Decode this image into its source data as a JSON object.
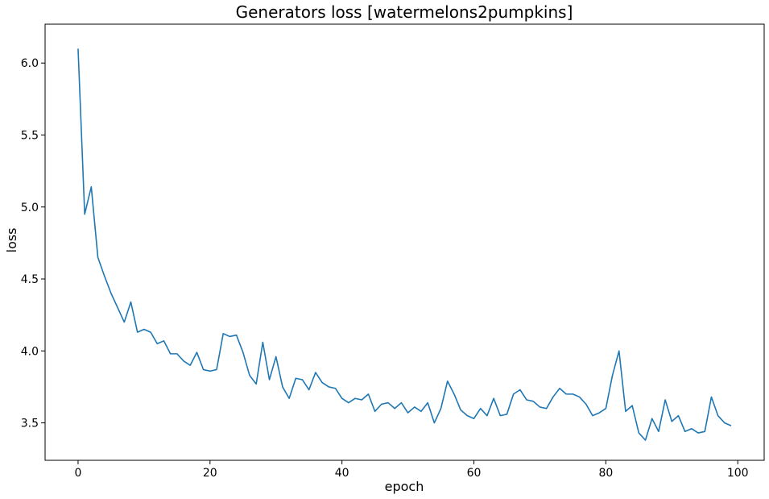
{
  "chart_data": {
    "type": "line",
    "title": "Generators loss [watermelons2pumpkins]",
    "xlabel": "epoch",
    "ylabel": "loss",
    "xlim": [
      -5,
      104
    ],
    "ylim": [
      3.24,
      6.27
    ],
    "xticks": [
      0,
      20,
      40,
      60,
      80,
      100
    ],
    "yticks": [
      3.5,
      4.0,
      4.5,
      5.0,
      5.5,
      6.0
    ],
    "xtick_labels": [
      "0",
      "20",
      "40",
      "60",
      "80",
      "100"
    ],
    "ytick_labels": [
      "3.5",
      "4.0",
      "4.5",
      "5.0",
      "5.5",
      "6.0"
    ],
    "grid": false,
    "line_color": "#1f77b4",
    "series": [
      {
        "x": [
          0,
          1,
          2,
          3,
          4,
          5,
          6,
          7,
          8,
          9,
          10,
          11,
          12,
          13,
          14,
          15,
          16,
          17,
          18,
          19,
          20,
          21,
          22,
          23,
          24,
          25,
          26,
          27,
          28,
          29,
          30,
          31,
          32,
          33,
          34,
          35,
          36,
          37,
          38,
          39,
          40,
          41,
          42,
          43,
          44,
          45,
          46,
          47,
          48,
          49,
          50,
          51,
          52,
          53,
          54,
          55,
          56,
          57,
          58,
          59,
          60,
          61,
          62,
          63,
          64,
          65,
          66,
          67,
          68,
          69,
          70,
          71,
          72,
          73,
          74,
          75,
          76,
          77,
          78,
          79,
          80,
          81,
          82,
          83,
          84,
          85,
          86,
          87,
          88,
          89,
          90,
          91,
          92,
          93,
          94,
          95,
          96,
          97,
          98,
          99
        ],
        "values": [
          6.1,
          4.95,
          5.14,
          4.65,
          4.52,
          4.4,
          4.3,
          4.2,
          4.34,
          4.13,
          4.15,
          4.13,
          4.05,
          4.07,
          3.98,
          3.98,
          3.93,
          3.9,
          3.99,
          3.87,
          3.86,
          3.87,
          4.12,
          4.1,
          4.11,
          3.99,
          3.83,
          3.77,
          4.06,
          3.8,
          3.96,
          3.75,
          3.67,
          3.81,
          3.8,
          3.73,
          3.85,
          3.78,
          3.75,
          3.74,
          3.67,
          3.64,
          3.67,
          3.66,
          3.7,
          3.58,
          3.63,
          3.64,
          3.6,
          3.64,
          3.57,
          3.61,
          3.58,
          3.64,
          3.5,
          3.6,
          3.79,
          3.7,
          3.59,
          3.55,
          3.53,
          3.6,
          3.55,
          3.67,
          3.55,
          3.56,
          3.7,
          3.73,
          3.66,
          3.65,
          3.61,
          3.6,
          3.68,
          3.74,
          3.7,
          3.7,
          3.68,
          3.63,
          3.55,
          3.57,
          3.6,
          3.83,
          4.0,
          3.58,
          3.62,
          3.43,
          3.38,
          3.53,
          3.44,
          3.66,
          3.51,
          3.55,
          3.44,
          3.46,
          3.43,
          3.44,
          3.68,
          3.55,
          3.5,
          3.48
        ]
      }
    ]
  }
}
